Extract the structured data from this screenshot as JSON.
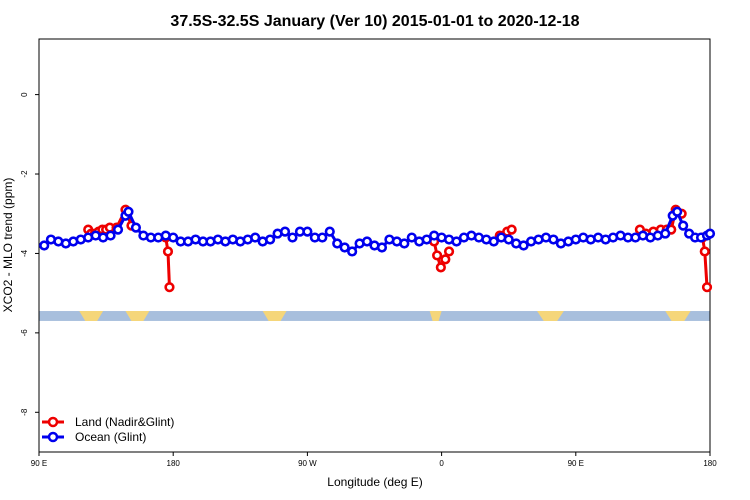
{
  "chart_data": {
    "type": "line",
    "title": "37.5S-32.5S January (Ver 10)   2015-01-01 to 2020-12-18",
    "xlabel": "Longitude (deg E)",
    "ylabel": "XCO2 - MLO trend (ppm)",
    "xlim": [
      90,
      540
    ],
    "ylim": [
      -9.0,
      1.4
    ],
    "x_ticks": [
      {
        "value": 90,
        "label": "90 E"
      },
      {
        "value": 180,
        "label": "180"
      },
      {
        "value": 270,
        "label": "90 W"
      },
      {
        "value": 360,
        "label": "0"
      },
      {
        "value": 450,
        "label": "90 E"
      },
      {
        "value": 540,
        "label": "180"
      }
    ],
    "y_ticks": [
      {
        "value": 0,
        "label": "0"
      },
      {
        "value": -2,
        "label": "-2"
      },
      {
        "value": -4,
        "label": "-4"
      },
      {
        "value": -6,
        "label": "-6"
      },
      {
        "value": -8,
        "label": "-8"
      }
    ],
    "grid": false,
    "legend_position": "bottom-left",
    "land_strip": {
      "y_top": -5.45,
      "y_bottom": -5.7,
      "ocean_color": "#a8bfdd",
      "land_color": "#f5d67a",
      "land_segments": [
        [
          117,
          133
        ],
        [
          148,
          164
        ],
        [
          240,
          256
        ],
        [
          352,
          360
        ],
        [
          424,
          442
        ],
        [
          510,
          527
        ]
      ]
    },
    "series": [
      {
        "name": "Land (Nadir&Glint)",
        "color": "#ee0000",
        "segments": [
          [
            [
              123,
              -3.4
            ],
            [
              125,
              -3.5
            ],
            [
              127.5,
              -3.5
            ],
            [
              130,
              -3.45
            ],
            [
              132.5,
              -3.4
            ],
            [
              135,
              -3.4
            ],
            [
              137.5,
              -3.35
            ],
            [
              142,
              -3.35
            ],
            [
              148,
              -2.9
            ],
            [
              152,
              -3.3
            ]
          ],
          [
            [
              175,
              -3.6
            ],
            [
              176.5,
              -3.95
            ],
            [
              177.5,
              -4.85
            ]
          ],
          [
            [
              355,
              -3.7
            ],
            [
              357,
              -4.05
            ],
            [
              359.5,
              -4.35
            ],
            [
              362.5,
              -4.15
            ],
            [
              365,
              -3.95
            ]
          ],
          [
            [
              399,
              -3.55
            ],
            [
              402,
              -3.55
            ],
            [
              404,
              -3.45
            ],
            [
              407,
              -3.4
            ]
          ],
          [
            [
              493,
              -3.4
            ],
            [
              497,
              -3.5
            ],
            [
              502,
              -3.45
            ],
            [
              507,
              -3.4
            ],
            [
              511,
              -3.4
            ],
            [
              514,
              -3.4
            ],
            [
              517,
              -2.9
            ],
            [
              521,
              -3.0
            ]
          ],
          [
            [
              535,
              -3.6
            ],
            [
              536.5,
              -3.95
            ],
            [
              538,
              -4.85
            ]
          ]
        ]
      },
      {
        "name": "Ocean (Glint)",
        "color": "#0000ee",
        "points": [
          [
            93.5,
            -3.8
          ],
          [
            98,
            -3.65
          ],
          [
            103,
            -3.7
          ],
          [
            108,
            -3.75
          ],
          [
            113,
            -3.7
          ],
          [
            118,
            -3.65
          ],
          [
            123,
            -3.6
          ],
          [
            128,
            -3.55
          ],
          [
            133,
            -3.6
          ],
          [
            138,
            -3.55
          ],
          [
            143,
            -3.4
          ],
          [
            148,
            -3.05
          ],
          [
            150,
            -2.95
          ],
          [
            155,
            -3.35
          ],
          [
            160,
            -3.55
          ],
          [
            165,
            -3.6
          ],
          [
            170,
            -3.6
          ],
          [
            175,
            -3.55
          ],
          [
            180,
            -3.6
          ],
          [
            185,
            -3.7
          ],
          [
            190,
            -3.7
          ],
          [
            195,
            -3.65
          ],
          [
            200,
            -3.7
          ],
          [
            205,
            -3.7
          ],
          [
            210,
            -3.65
          ],
          [
            215,
            -3.7
          ],
          [
            220,
            -3.65
          ],
          [
            225,
            -3.7
          ],
          [
            230,
            -3.65
          ],
          [
            235,
            -3.6
          ],
          [
            240,
            -3.7
          ],
          [
            245,
            -3.65
          ],
          [
            250,
            -3.5
          ],
          [
            255,
            -3.45
          ],
          [
            260,
            -3.6
          ],
          [
            265,
            -3.45
          ],
          [
            270,
            -3.45
          ],
          [
            275,
            -3.6
          ],
          [
            280,
            -3.6
          ],
          [
            285,
            -3.45
          ],
          [
            290,
            -3.75
          ],
          [
            295,
            -3.85
          ],
          [
            300,
            -3.95
          ],
          [
            305,
            -3.75
          ],
          [
            310,
            -3.7
          ],
          [
            315,
            -3.8
          ],
          [
            320,
            -3.85
          ],
          [
            325,
            -3.65
          ],
          [
            330,
            -3.7
          ],
          [
            335,
            -3.75
          ],
          [
            340,
            -3.6
          ],
          [
            345,
            -3.7
          ],
          [
            350,
            -3.65
          ],
          [
            355,
            -3.55
          ],
          [
            360,
            -3.6
          ],
          [
            365,
            -3.65
          ],
          [
            370,
            -3.7
          ],
          [
            375,
            -3.6
          ],
          [
            380,
            -3.55
          ],
          [
            385,
            -3.6
          ],
          [
            390,
            -3.65
          ],
          [
            395,
            -3.7
          ],
          [
            400,
            -3.6
          ],
          [
            405,
            -3.65
          ],
          [
            410,
            -3.75
          ],
          [
            415,
            -3.8
          ],
          [
            420,
            -3.7
          ],
          [
            425,
            -3.65
          ],
          [
            430,
            -3.6
          ],
          [
            435,
            -3.65
          ],
          [
            440,
            -3.75
          ],
          [
            445,
            -3.7
          ],
          [
            450,
            -3.65
          ],
          [
            455,
            -3.6
          ],
          [
            460,
            -3.65
          ],
          [
            465,
            -3.6
          ],
          [
            470,
            -3.65
          ],
          [
            475,
            -3.6
          ],
          [
            480,
            -3.55
          ],
          [
            485,
            -3.6
          ],
          [
            490,
            -3.6
          ],
          [
            495,
            -3.55
          ],
          [
            500,
            -3.6
          ],
          [
            505,
            -3.55
          ],
          [
            510,
            -3.5
          ],
          [
            515,
            -3.05
          ],
          [
            518,
            -2.95
          ],
          [
            522,
            -3.3
          ],
          [
            526,
            -3.5
          ],
          [
            530,
            -3.6
          ],
          [
            534,
            -3.6
          ],
          [
            538,
            -3.55
          ],
          [
            540,
            -3.5
          ]
        ]
      }
    ]
  }
}
